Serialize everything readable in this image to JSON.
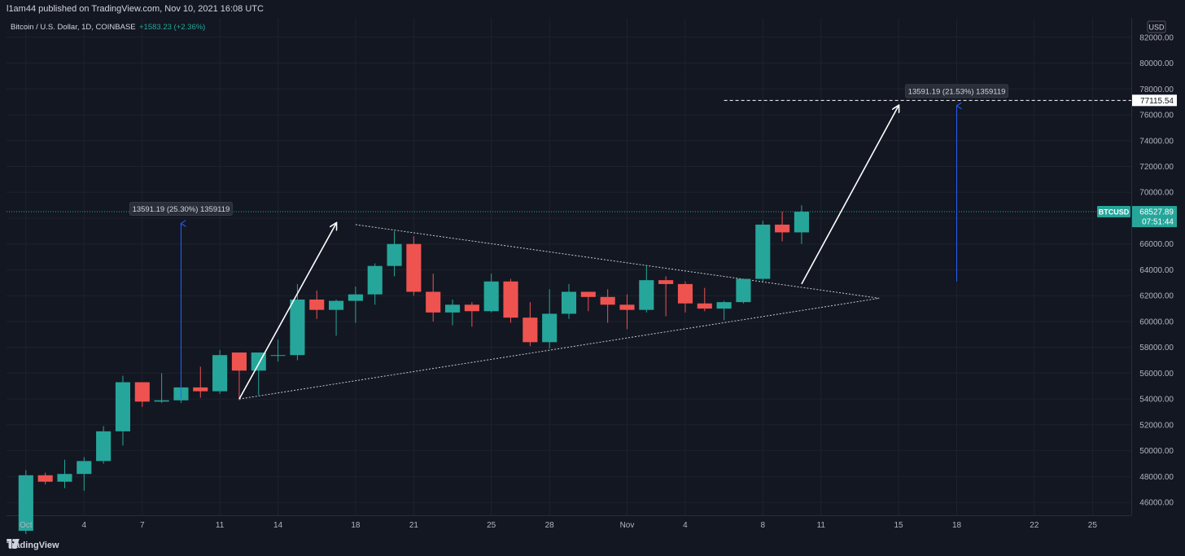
{
  "header": {
    "publish_line": "l1am44 published on TradingView.com, Nov 10, 2021 16:08 UTC"
  },
  "footer": {
    "brand_label": "TradingView"
  },
  "colors": {
    "background": "#131722",
    "grid": "#1e222d",
    "up": "#26a69a",
    "down": "#ef5350",
    "text": "#d1d4dc",
    "axis_text": "#b2b5be",
    "price_line": "#26a69a",
    "measure_blue": "#2962ff",
    "white": "#ffffff"
  },
  "chart_data": {
    "type": "candlestick",
    "title": "Bitcoin / U.S. Dollar, 1D, COINBASE",
    "change_text": "+1583.23 (+2.36%)",
    "symbol_label": "BTCUSD",
    "currency_label": "USD",
    "current_price": "68527.89",
    "countdown": "07:51:44",
    "y_ticks": [
      "82000.00",
      "80000.00",
      "78000.00",
      "76000.00",
      "74000.00",
      "72000.00",
      "70000.00",
      "68000.00",
      "66000.00",
      "64000.00",
      "62000.00",
      "60000.00",
      "58000.00",
      "56000.00",
      "54000.00",
      "52000.00",
      "50000.00",
      "48000.00",
      "46000.00"
    ],
    "ylim": [
      45000,
      83500
    ],
    "x_ticks": [
      {
        "date": "2021-10-01",
        "label": "Oct"
      },
      {
        "date": "2021-10-04",
        "label": "4"
      },
      {
        "date": "2021-10-07",
        "label": "7"
      },
      {
        "date": "2021-10-11",
        "label": "11"
      },
      {
        "date": "2021-10-14",
        "label": "14"
      },
      {
        "date": "2021-10-18",
        "label": "18"
      },
      {
        "date": "2021-10-21",
        "label": "21"
      },
      {
        "date": "2021-10-25",
        "label": "25"
      },
      {
        "date": "2021-10-28",
        "label": "28"
      },
      {
        "date": "2021-11-01",
        "label": "Nov"
      },
      {
        "date": "2021-11-04",
        "label": "4"
      },
      {
        "date": "2021-11-08",
        "label": "8"
      },
      {
        "date": "2021-11-11",
        "label": "11"
      },
      {
        "date": "2021-11-15",
        "label": "15"
      },
      {
        "date": "2021-11-18",
        "label": "18"
      },
      {
        "date": "2021-11-22",
        "label": "22"
      },
      {
        "date": "2021-11-25",
        "label": "25"
      }
    ],
    "xlim": [
      "2021-09-30",
      "2021-11-27"
    ],
    "candles": [
      {
        "date": "2021-10-01",
        "open": 43800,
        "high": 48500,
        "low": 43300,
        "close": 48100
      },
      {
        "date": "2021-10-02",
        "open": 48100,
        "high": 48300,
        "low": 47400,
        "close": 47600
      },
      {
        "date": "2021-10-03",
        "open": 47600,
        "high": 49300,
        "low": 47100,
        "close": 48200
      },
      {
        "date": "2021-10-04",
        "open": 48200,
        "high": 49500,
        "low": 46900,
        "close": 49200
      },
      {
        "date": "2021-10-05",
        "open": 49200,
        "high": 51900,
        "low": 49000,
        "close": 51500
      },
      {
        "date": "2021-10-06",
        "open": 51500,
        "high": 55800,
        "low": 50400,
        "close": 55300
      },
      {
        "date": "2021-10-07",
        "open": 55300,
        "high": 55300,
        "low": 53400,
        "close": 53800
      },
      {
        "date": "2021-10-08",
        "open": 53800,
        "high": 56000,
        "low": 53700,
        "close": 53900
      },
      {
        "date": "2021-10-09",
        "open": 53900,
        "high": 55400,
        "low": 53700,
        "close": 54900
      },
      {
        "date": "2021-10-10",
        "open": 54900,
        "high": 56500,
        "low": 54100,
        "close": 54600
      },
      {
        "date": "2021-10-11",
        "open": 54600,
        "high": 57800,
        "low": 54400,
        "close": 57400
      },
      {
        "date": "2021-10-12",
        "open": 57600,
        "high": 57600,
        "low": 53900,
        "close": 56200
      },
      {
        "date": "2021-10-13",
        "open": 56200,
        "high": 57600,
        "low": 54300,
        "close": 57600
      },
      {
        "date": "2021-10-14",
        "open": 57400,
        "high": 58600,
        "low": 56900,
        "close": 57400
      },
      {
        "date": "2021-10-15",
        "open": 57400,
        "high": 62900,
        "low": 57000,
        "close": 61700
      },
      {
        "date": "2021-10-16",
        "open": 61700,
        "high": 62400,
        "low": 60200,
        "close": 60900
      },
      {
        "date": "2021-10-17",
        "open": 60900,
        "high": 61700,
        "low": 58900,
        "close": 61600
      },
      {
        "date": "2021-10-18",
        "open": 61600,
        "high": 62700,
        "low": 59900,
        "close": 62100
      },
      {
        "date": "2021-10-19",
        "open": 62100,
        "high": 64500,
        "low": 61300,
        "close": 64300
      },
      {
        "date": "2021-10-20",
        "open": 64300,
        "high": 67000,
        "low": 63500,
        "close": 66000
      },
      {
        "date": "2021-10-21",
        "open": 66000,
        "high": 66600,
        "low": 62000,
        "close": 62300
      },
      {
        "date": "2021-10-22",
        "open": 62300,
        "high": 63700,
        "low": 60000,
        "close": 60700
      },
      {
        "date": "2021-10-23",
        "open": 60700,
        "high": 61700,
        "low": 59700,
        "close": 61300
      },
      {
        "date": "2021-10-24",
        "open": 61300,
        "high": 61500,
        "low": 59600,
        "close": 60800
      },
      {
        "date": "2021-10-25",
        "open": 60800,
        "high": 63700,
        "low": 60700,
        "close": 63100
      },
      {
        "date": "2021-10-26",
        "open": 63100,
        "high": 63300,
        "low": 59900,
        "close": 60300
      },
      {
        "date": "2021-10-27",
        "open": 60300,
        "high": 61500,
        "low": 58100,
        "close": 58400
      },
      {
        "date": "2021-10-28",
        "open": 58400,
        "high": 62500,
        "low": 57900,
        "close": 60600
      },
      {
        "date": "2021-10-29",
        "open": 60600,
        "high": 62900,
        "low": 60200,
        "close": 62300
      },
      {
        "date": "2021-10-30",
        "open": 62300,
        "high": 62300,
        "low": 60800,
        "close": 61900
      },
      {
        "date": "2021-10-31",
        "open": 61900,
        "high": 62500,
        "low": 59900,
        "close": 61300
      },
      {
        "date": "2021-11-01",
        "open": 61300,
        "high": 62100,
        "low": 59400,
        "close": 60900
      },
      {
        "date": "2021-11-02",
        "open": 60900,
        "high": 64300,
        "low": 60700,
        "close": 63200
      },
      {
        "date": "2021-11-03",
        "open": 63200,
        "high": 63500,
        "low": 60400,
        "close": 62900
      },
      {
        "date": "2021-11-04",
        "open": 62900,
        "high": 63100,
        "low": 60700,
        "close": 61400
      },
      {
        "date": "2021-11-05",
        "open": 61400,
        "high": 62600,
        "low": 60800,
        "close": 61000
      },
      {
        "date": "2021-11-06",
        "open": 61000,
        "high": 61600,
        "low": 60100,
        "close": 61500
      },
      {
        "date": "2021-11-07",
        "open": 61500,
        "high": 63300,
        "low": 61400,
        "close": 63300
      },
      {
        "date": "2021-11-08",
        "open": 63300,
        "high": 67800,
        "low": 63100,
        "close": 67500
      },
      {
        "date": "2021-11-09",
        "open": 67500,
        "high": 68500,
        "low": 66200,
        "close": 66900
      },
      {
        "date": "2021-11-10",
        "open": 66900,
        "high": 69000,
        "low": 66000,
        "close": 68500
      }
    ],
    "annotations": {
      "measure_labels": [
        {
          "text": "13591.19 (25.30%) 1359119",
          "date": "2021-10-09",
          "from_price": 54000,
          "to_price": 67591
        },
        {
          "text": "13591.19 (21.53%) 1359119",
          "date": "2021-11-18",
          "from_price": 63100,
          "to_price": 76700
        }
      ],
      "target_price_label": "77115.54",
      "target_price": 77115.54,
      "arrows": [
        {
          "from_date": "2021-10-12",
          "from_price": 54000,
          "to_date": "2021-10-17",
          "to_price": 67600
        },
        {
          "from_date": "2021-11-10",
          "from_price": 62900,
          "to_date": "2021-11-15",
          "to_price": 76700
        }
      ],
      "triangle": {
        "upper": {
          "from_date": "2021-10-18",
          "from_price": 67500,
          "to_date": "2021-11-14",
          "to_price": 61800
        },
        "lower": {
          "from_date": "2021-10-12",
          "from_price": 54000,
          "to_date": "2021-11-14",
          "to_price": 61800
        }
      },
      "target_dashed_from_date": "2021-11-06"
    }
  }
}
